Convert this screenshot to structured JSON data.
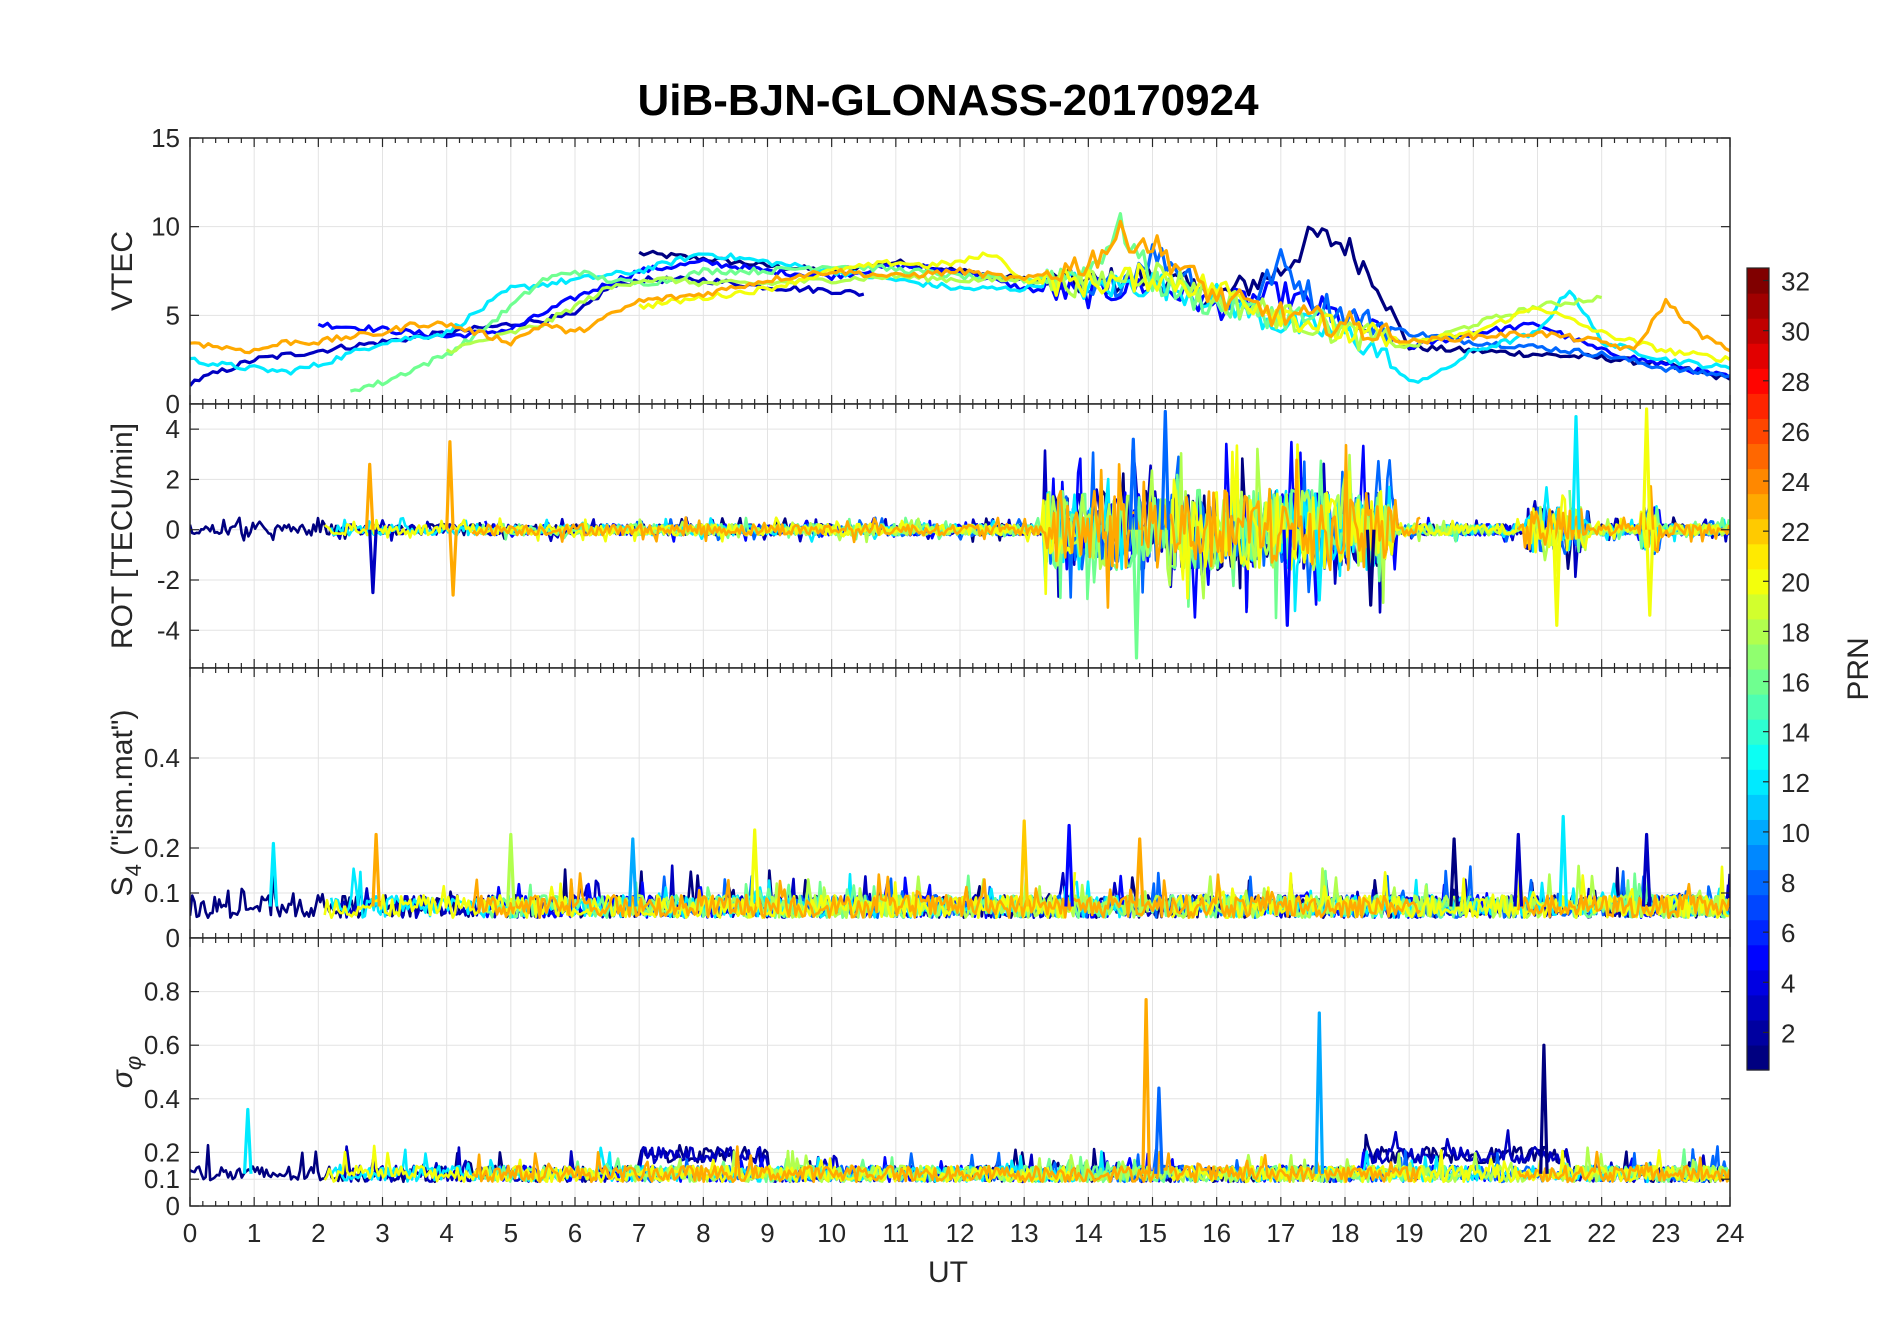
{
  "chart_data": {
    "type": "line",
    "title": "UiB-BJN-GLONASS-20170924",
    "xlabel": "UT",
    "xlim": [
      0,
      24
    ],
    "x_ticks": [
      0,
      1,
      2,
      3,
      4,
      5,
      6,
      7,
      8,
      9,
      10,
      11,
      12,
      13,
      14,
      15,
      16,
      17,
      18,
      19,
      20,
      21,
      22,
      23,
      24
    ],
    "x_tick_labels": [
      "0",
      "1",
      "2",
      "3",
      "4",
      "5",
      "6",
      "7",
      "8",
      "9",
      "10",
      "11",
      "12",
      "13",
      "14",
      "15",
      "16",
      "17",
      "18",
      "19",
      "20",
      "21",
      "22",
      "23",
      "24"
    ],
    "grid": true,
    "panels": [
      {
        "name": "vtec",
        "ylabel": "VTEC",
        "ylim": [
          0,
          15
        ],
        "y_ticks": [
          0,
          5,
          10,
          15
        ],
        "y_tick_labels": [
          "0",
          "5",
          "10",
          "15"
        ],
        "series": [
          {
            "prn": 1,
            "x": [
              7,
              8,
              9,
              10,
              11,
              12,
              13,
              14,
              15,
              16,
              17,
              17.5,
              18,
              18.5,
              19,
              20,
              21,
              22,
              23,
              24
            ],
            "y": [
              8.5,
              8.2,
              7.8,
              7.5,
              8,
              7.5,
              7,
              6.8,
              7.2,
              6,
              7.5,
              9.5,
              9,
              7,
              3.2,
              3,
              2.8,
              2.6,
              2.2,
              1.4
            ]
          },
          {
            "prn": 3,
            "x": [
              0,
              1,
              2,
              3,
              4,
              5,
              6,
              6.5,
              7,
              7.5,
              8,
              8.5,
              9,
              10,
              10.5
            ],
            "y": [
              1.2,
              2.5,
              3,
              3.5,
              4,
              4.5,
              5,
              6.5,
              7,
              7,
              7,
              6.8,
              6.6,
              6.4,
              6.2
            ]
          },
          {
            "prn": 5,
            "x": [
              2,
              3,
              4,
              5,
              6,
              7,
              8,
              9,
              10,
              11,
              12,
              13,
              14,
              15,
              16,
              17,
              18,
              19,
              20,
              21,
              22,
              23,
              24
            ],
            "y": [
              4.5,
              4.2,
              3.8,
              4.2,
              6,
              7.5,
              8,
              7.5,
              7.2,
              7.8,
              7.5,
              6.5,
              6.2,
              6.8,
              5.5,
              6.2,
              4.8,
              3.2,
              4,
              4.5,
              3,
              2.2,
              1.5
            ]
          },
          {
            "prn": 8,
            "x": [
              14,
              14.5,
              15,
              15.5,
              16,
              16.5,
              17,
              17.5,
              18,
              19,
              20,
              21,
              22,
              23,
              24
            ],
            "y": [
              6,
              7,
              8.5,
              7.5,
              6,
              5.5,
              8,
              6,
              5,
              4,
              3.5,
              3.2,
              2.8,
              2,
              1.6
            ]
          },
          {
            "prn": 12,
            "x": [
              0,
              0.5,
              1,
              1.5,
              2,
              3,
              4,
              5,
              6,
              7,
              8,
              9,
              10,
              11,
              12,
              12.5,
              13,
              13.5,
              14,
              15,
              16,
              17,
              18,
              18.5,
              19,
              19.5,
              20,
              20.5,
              21,
              21.5,
              22,
              23,
              24
            ],
            "y": [
              2.5,
              2.2,
              2,
              1.8,
              2.2,
              3.5,
              4,
              6.5,
              7,
              7.5,
              8.5,
              8,
              7.5,
              7,
              6.5,
              6.5,
              6.5,
              7,
              6.5,
              6.8,
              6,
              4.5,
              4,
              3,
              1.2,
              1.8,
              3,
              3.5,
              4,
              6.5,
              3.5,
              2.5,
              2
            ]
          },
          {
            "prn": 16,
            "x": [
              2.5,
              3,
              3.5,
              4,
              4.5,
              5,
              5.5,
              6,
              6.5,
              7,
              7.5,
              8,
              9,
              10,
              11,
              12,
              13,
              14,
              14.5,
              15,
              16,
              17,
              18
            ],
            "y": [
              0.8,
              1.2,
              2,
              2.8,
              4,
              5.5,
              7,
              7.5,
              7,
              6.8,
              7,
              7.5,
              7.5,
              7.8,
              7.6,
              7.2,
              7,
              7.5,
              10,
              7,
              5.5,
              5,
              4.5
            ]
          },
          {
            "prn": 18,
            "x": [
              4,
              4.5,
              5,
              5.5,
              6,
              6.5,
              7,
              7.5,
              8,
              9,
              10,
              11,
              12,
              13,
              14,
              15,
              16,
              17,
              18,
              19,
              20,
              21,
              22
            ],
            "y": [
              3,
              3.5,
              4,
              4.5,
              5.5,
              6.5,
              7,
              7,
              6.8,
              6.8,
              7,
              7.2,
              7,
              7,
              6.8,
              7.5,
              6,
              5,
              4,
              3.2,
              4.5,
              5.5,
              6
            ]
          },
          {
            "prn": 20,
            "x": [
              7,
              8,
              9,
              10,
              11,
              11.5,
              12,
              12.5,
              13,
              14,
              15,
              16,
              17,
              18,
              19,
              20,
              21,
              22,
              23,
              24
            ],
            "y": [
              5.5,
              6,
              6.5,
              7.5,
              8,
              7.8,
              8,
              8.5,
              7,
              6.8,
              7.2,
              6.5,
              5.2,
              4,
              3.5,
              4,
              5.5,
              4,
              3,
              2.5
            ]
          },
          {
            "prn": 23,
            "x": [
              0,
              0.5,
              1,
              1.5,
              2,
              2.5,
              3,
              3.5,
              4,
              4.5,
              5,
              5.5,
              6,
              7,
              8,
              9,
              10,
              11,
              12,
              13,
              14,
              14.5,
              15,
              15.5,
              16,
              17,
              18,
              19,
              20,
              21,
              22,
              22.5,
              23,
              23.5,
              24
            ],
            "y": [
              3.5,
              3.2,
              3,
              3.5,
              3.5,
              3.8,
              4,
              4.5,
              4.5,
              4,
              3.5,
              4.5,
              4,
              5.8,
              6.2,
              7,
              7.5,
              7.2,
              7.5,
              7,
              8,
              9.5,
              9,
              7.5,
              6,
              5,
              4.5,
              3.5,
              3.8,
              4,
              3.5,
              3,
              5.8,
              4,
              3
            ]
          }
        ]
      },
      {
        "name": "rot",
        "ylabel": "ROT [TECU/min]",
        "ylim": [
          -5.5,
          5
        ],
        "y_ticks": [
          -4,
          -2,
          0,
          2,
          4
        ],
        "y_tick_labels": [
          "-4",
          "-2",
          "0",
          "2",
          "4"
        ],
        "spikes": [
          {
            "prn": 23,
            "x": 2.8,
            "y": 2.6
          },
          {
            "prn": 3,
            "x": 2.85,
            "y": -2.5
          },
          {
            "prn": 23,
            "x": 4.05,
            "y": 3.5
          },
          {
            "prn": 23,
            "x": 4.1,
            "y": -2.6
          },
          {
            "prn": 8,
            "x": 14.7,
            "y": 3.6
          },
          {
            "prn": 16,
            "x": 14.75,
            "y": -5.1
          },
          {
            "prn": 8,
            "x": 15.2,
            "y": 4.7
          },
          {
            "prn": 5,
            "x": 17.1,
            "y": -3.8
          },
          {
            "prn": 12,
            "x": 17.6,
            "y": -2.8
          },
          {
            "prn": 1,
            "x": 18.4,
            "y": -3.0
          },
          {
            "prn": 20,
            "x": 21.3,
            "y": -3.8
          },
          {
            "prn": 12,
            "x": 21.6,
            "y": 4.5
          },
          {
            "prn": 20,
            "x": 22.7,
            "y": 4.8
          },
          {
            "prn": 20,
            "x": 22.75,
            "y": -3.4
          }
        ]
      },
      {
        "name": "s4",
        "ylabel": "S4 (\"ism.mat\")",
        "ylabel_main": "S",
        "ylabel_sub": "4",
        "ylabel_rest": " (\"ism.mat\")",
        "ylim": [
          0,
          0.6
        ],
        "y_ticks": [
          0,
          0.1,
          0.2,
          0.4
        ],
        "y_tick_labels": [
          "0",
          "0.1",
          "0.2",
          "0.4"
        ],
        "spikes": [
          {
            "prn": 12,
            "x": 1.3,
            "y": 0.21
          },
          {
            "prn": 23,
            "x": 2.9,
            "y": 0.23
          },
          {
            "prn": 18,
            "x": 5.0,
            "y": 0.23
          },
          {
            "prn": 10,
            "x": 6.9,
            "y": 0.22
          },
          {
            "prn": 20,
            "x": 8.8,
            "y": 0.24
          },
          {
            "prn": 22,
            "x": 13.0,
            "y": 0.26
          },
          {
            "prn": 5,
            "x": 13.7,
            "y": 0.25
          },
          {
            "prn": 23,
            "x": 14.8,
            "y": 0.22
          },
          {
            "prn": 1,
            "x": 19.7,
            "y": 0.22
          },
          {
            "prn": 3,
            "x": 20.7,
            "y": 0.23
          },
          {
            "prn": 12,
            "x": 21.4,
            "y": 0.27
          },
          {
            "prn": 3,
            "x": 22.7,
            "y": 0.23
          }
        ]
      },
      {
        "name": "sigma_phi",
        "ylabel": "σ_φ",
        "ylabel_main": "σ",
        "ylabel_sub": "φ",
        "ylim": [
          0,
          1
        ],
        "y_ticks": [
          0,
          0.1,
          0.2,
          0.4,
          0.6,
          0.8
        ],
        "y_tick_labels": [
          "0",
          "0.1",
          "0.2",
          "0.4",
          "0.6",
          "0.8"
        ],
        "spikes": [
          {
            "prn": 12,
            "x": 0.9,
            "y": 0.36
          },
          {
            "prn": 23,
            "x": 14.9,
            "y": 0.77
          },
          {
            "prn": 8,
            "x": 15.1,
            "y": 0.44
          },
          {
            "prn": 10,
            "x": 17.6,
            "y": 0.72
          },
          {
            "prn": 1,
            "x": 21.1,
            "y": 0.6
          }
        ]
      }
    ],
    "colorbar": {
      "label": "PRN",
      "colormap": "jet",
      "range": [
        1,
        32
      ],
      "ticks": [
        2,
        4,
        6,
        8,
        10,
        12,
        14,
        16,
        18,
        20,
        22,
        24,
        26,
        28,
        30,
        32
      ],
      "tick_labels": [
        "2",
        "4",
        "6",
        "8",
        "10",
        "12",
        "14",
        "16",
        "18",
        "20",
        "22",
        "24",
        "26",
        "28",
        "30",
        "32"
      ]
    }
  }
}
